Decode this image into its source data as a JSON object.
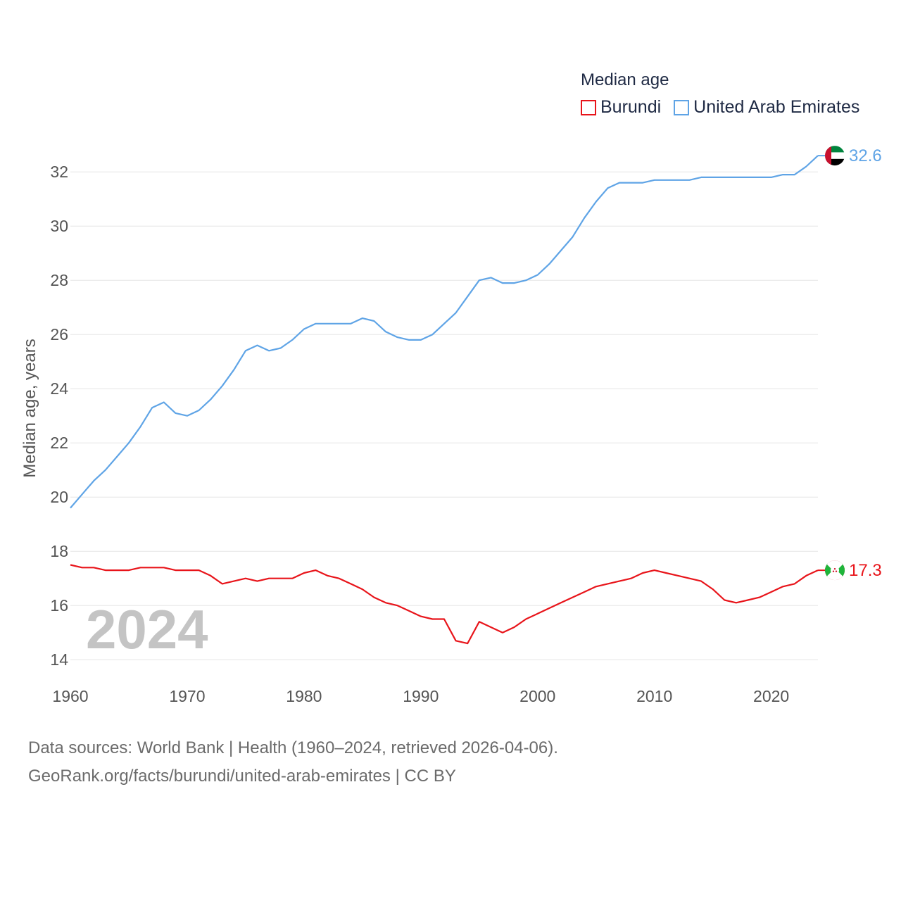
{
  "legend": {
    "title": "Median age",
    "items": [
      {
        "name": "Burundi",
        "color": "#e8141a"
      },
      {
        "name": "United Arab Emirates",
        "color": "#5fa4e6"
      }
    ]
  },
  "footer": {
    "line1": "Data sources: World Bank | Health (1960–2024, retrieved 2026-04-06).",
    "line2": "GeoRank.org/facts/burundi/united-arab-emirates | CC BY"
  },
  "chart_data": {
    "type": "line",
    "ylabel": "Median age, years",
    "year_label": "2024",
    "xlim": [
      1960,
      2024
    ],
    "ylim": [
      13.2,
      33.2
    ],
    "xticks": [
      1960,
      1970,
      1980,
      1990,
      2000,
      2010,
      2020
    ],
    "yticks": [
      14,
      16,
      18,
      20,
      22,
      24,
      26,
      28,
      30,
      32
    ],
    "x": [
      1960,
      1961,
      1962,
      1963,
      1964,
      1965,
      1966,
      1967,
      1968,
      1969,
      1970,
      1971,
      1972,
      1973,
      1974,
      1975,
      1976,
      1977,
      1978,
      1979,
      1980,
      1981,
      1982,
      1983,
      1984,
      1985,
      1986,
      1987,
      1988,
      1989,
      1990,
      1991,
      1992,
      1993,
      1994,
      1995,
      1996,
      1997,
      1998,
      1999,
      2000,
      2001,
      2002,
      2003,
      2004,
      2005,
      2006,
      2007,
      2008,
      2009,
      2010,
      2011,
      2012,
      2013,
      2014,
      2015,
      2016,
      2017,
      2018,
      2019,
      2020,
      2021,
      2022,
      2023,
      2024
    ],
    "series": [
      {
        "name": "Burundi",
        "color": "#e8141a",
        "end_label": "17.3",
        "flag": "burundi-flag-icon",
        "values": [
          17.5,
          17.4,
          17.4,
          17.3,
          17.3,
          17.3,
          17.4,
          17.4,
          17.4,
          17.3,
          17.3,
          17.3,
          17.1,
          16.8,
          16.9,
          17.0,
          16.9,
          17.0,
          17.0,
          17.0,
          17.2,
          17.3,
          17.1,
          17.0,
          16.8,
          16.6,
          16.3,
          16.1,
          16.0,
          15.8,
          15.6,
          15.5,
          15.5,
          14.7,
          14.6,
          15.4,
          15.2,
          15.0,
          15.2,
          15.5,
          15.7,
          15.9,
          16.1,
          16.3,
          16.5,
          16.7,
          16.8,
          16.9,
          17.0,
          17.2,
          17.3,
          17.2,
          17.1,
          17.0,
          16.9,
          16.6,
          16.2,
          16.1,
          16.2,
          16.3,
          16.5,
          16.7,
          16.8,
          17.1,
          17.3
        ]
      },
      {
        "name": "United Arab Emirates",
        "color": "#5fa4e6",
        "end_label": "32.6",
        "flag": "uae-flag-icon",
        "values": [
          19.6,
          20.1,
          20.6,
          21.0,
          21.5,
          22.0,
          22.6,
          23.3,
          23.5,
          23.1,
          23.0,
          23.2,
          23.6,
          24.1,
          24.7,
          25.4,
          25.6,
          25.4,
          25.5,
          25.8,
          26.2,
          26.4,
          26.4,
          26.4,
          26.4,
          26.6,
          26.5,
          26.1,
          25.9,
          25.8,
          25.8,
          26.0,
          26.4,
          26.8,
          27.4,
          28.0,
          28.1,
          27.9,
          27.9,
          28.0,
          28.2,
          28.6,
          29.1,
          29.6,
          30.3,
          30.9,
          31.4,
          31.6,
          31.6,
          31.6,
          31.7,
          31.7,
          31.7,
          31.7,
          31.8,
          31.8,
          31.8,
          31.8,
          31.8,
          31.8,
          31.8,
          31.9,
          31.9,
          32.2,
          32.6
        ]
      }
    ]
  }
}
